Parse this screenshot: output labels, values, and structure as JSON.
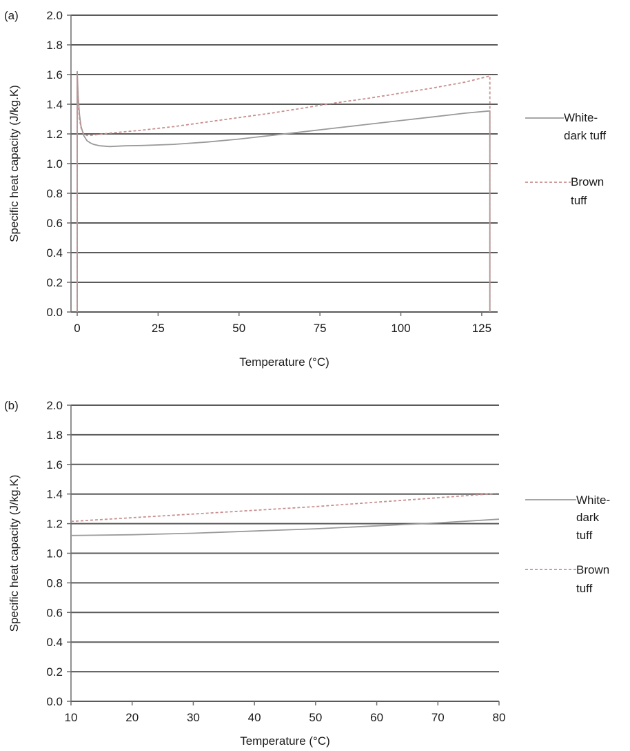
{
  "chart_data": [
    {
      "type": "line",
      "panel_label": "(a)",
      "xlabel": "Temperature (°C)",
      "ylabel": "Specific heat capacity (J/kg.K)",
      "xlim": [
        0,
        128
      ],
      "ylim": [
        0,
        2.0
      ],
      "x_ticks": [
        0,
        25,
        50,
        75,
        100,
        125
      ],
      "y_ticks": [
        0.0,
        0.2,
        0.4,
        0.6,
        0.8,
        1.0,
        1.2,
        1.4,
        1.6,
        1.8,
        2.0
      ],
      "y_tick_labels": [
        "0.0",
        "0.2",
        "0.4",
        "0.6",
        "0.8",
        "1.0",
        "1.2",
        "1.4",
        "1.6",
        "1.8",
        "2.0"
      ],
      "grid": true,
      "legend_position": "right",
      "series": [
        {
          "name": "White-dark tuff",
          "legend_lines": [
            "White-",
            "dark tuff"
          ],
          "style": "solid",
          "color": "#9a9a9a",
          "x": [
            0,
            0,
            0.3,
            0.7,
            1.2,
            2,
            3,
            4,
            5,
            7,
            10,
            15,
            20,
            30,
            40,
            50,
            60,
            70,
            80,
            90,
            100,
            110,
            120,
            127.5,
            127.5
          ],
          "y": [
            0.0,
            1.62,
            1.45,
            1.33,
            1.25,
            1.19,
            1.155,
            1.14,
            1.13,
            1.12,
            1.115,
            1.12,
            1.122,
            1.13,
            1.145,
            1.165,
            1.19,
            1.215,
            1.24,
            1.265,
            1.29,
            1.315,
            1.34,
            1.355,
            0.0
          ]
        },
        {
          "name": "Brown tuff",
          "legend_lines": [
            "Brown",
            "tuff"
          ],
          "style": "dashed",
          "color": "#c88f8f",
          "x": [
            0,
            0,
            0.3,
            0.7,
            1.2,
            2,
            3,
            4,
            6,
            10,
            20,
            30,
            40,
            50,
            60,
            70,
            80,
            90,
            100,
            110,
            120,
            127.5,
            127.5
          ],
          "y": [
            0.0,
            1.6,
            1.4,
            1.3,
            1.24,
            1.2,
            1.19,
            1.19,
            1.195,
            1.205,
            1.225,
            1.25,
            1.28,
            1.31,
            1.34,
            1.375,
            1.41,
            1.44,
            1.475,
            1.51,
            1.55,
            1.59,
            0.0
          ]
        }
      ]
    },
    {
      "type": "line",
      "panel_label": "(b)",
      "xlabel": "Temperature (°C)",
      "ylabel": "Specific heat capacity (J/kg.K)",
      "xlim": [
        10,
        80
      ],
      "ylim": [
        0,
        2.0
      ],
      "x_ticks": [
        10,
        20,
        30,
        40,
        50,
        60,
        70,
        80
      ],
      "y_ticks": [
        0.0,
        0.2,
        0.4,
        0.6,
        0.8,
        1.0,
        1.2,
        1.4,
        1.6,
        1.8,
        2.0
      ],
      "y_tick_labels": [
        "0.0",
        "0.2",
        "0.4",
        "0.6",
        "0.8",
        "1.0",
        "1.2",
        "1.4",
        "1.6",
        "1.8",
        "2.0"
      ],
      "grid": true,
      "legend_position": "right",
      "series": [
        {
          "name": "White-dark tuff",
          "legend_lines": [
            "White-",
            "dark",
            "tuff"
          ],
          "style": "solid",
          "color": "#9a9a9a",
          "x": [
            10,
            20,
            30,
            40,
            50,
            60,
            70,
            80
          ],
          "y": [
            1.12,
            1.125,
            1.135,
            1.15,
            1.165,
            1.185,
            1.205,
            1.23
          ]
        },
        {
          "name": "Brown tuff",
          "legend_lines": [
            "Brown",
            "tuff"
          ],
          "style": "dashed",
          "color": "#c88f8f",
          "x": [
            10,
            20,
            30,
            40,
            50,
            60,
            70,
            80
          ],
          "y": [
            1.215,
            1.24,
            1.265,
            1.29,
            1.315,
            1.345,
            1.375,
            1.405
          ]
        }
      ]
    }
  ]
}
